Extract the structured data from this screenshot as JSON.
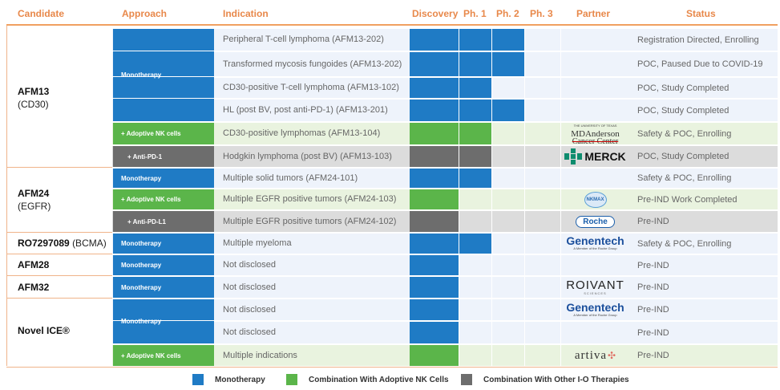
{
  "chart_data": {
    "type": "table",
    "columns": [
      "Candidate",
      "Approach",
      "Indication",
      "Discovery",
      "Ph. 1",
      "Ph. 2",
      "Ph. 3",
      "Partner",
      "Status"
    ],
    "phases": [
      "Discovery",
      "Ph. 1",
      "Ph. 2",
      "Ph. 3"
    ],
    "colors": {
      "monotherapy": "#1f7bc5",
      "adoptive": "#5bb54a",
      "io": "#6d6d6d",
      "header": "#e8884a"
    },
    "candidates": [
      {
        "name": "AFM13",
        "sub": "(CD30)"
      },
      {
        "name": "AFM24",
        "sub": "(EGFR)"
      },
      {
        "name": "RO7297089",
        "sub": "(BCMA)"
      },
      {
        "name": "AFM28",
        "sub": ""
      },
      {
        "name": "AFM32",
        "sub": ""
      },
      {
        "name": "Novel ICE®",
        "sub": ""
      }
    ],
    "approaches": [
      {
        "label": "Monotherapy",
        "color": "blue"
      },
      {
        "label": "+ Adoptive NK cells",
        "color": "green"
      },
      {
        "label": "+ Anti-PD-1",
        "color": "gray"
      },
      {
        "label": "Monotherapy",
        "color": "blue"
      },
      {
        "label": "+ Adoptive NK cells",
        "color": "green"
      },
      {
        "label": "+ Anti-PD-L1",
        "color": "gray"
      },
      {
        "label": "Monotherapy",
        "color": "blue"
      },
      {
        "label": "Monotherapy",
        "color": "blue"
      },
      {
        "label": "Monotherapy",
        "color": "blue"
      },
      {
        "label": "Monotherapy",
        "color": "blue"
      },
      {
        "label": "+ Adoptive NK cells",
        "color": "green"
      }
    ],
    "rows": [
      {
        "indication": "Peripheral T-cell lymphoma (AFM13-202)",
        "phase_reached": 3,
        "color": "blue",
        "status": "Registration Directed, Enrolling"
      },
      {
        "indication": "Transformed mycosis fungoides (AFM13-202)",
        "phase_reached": 3,
        "color": "blue",
        "status": "POC, Paused Due to COVID-19"
      },
      {
        "indication": "CD30-positive T-cell lymphoma (AFM13-102)",
        "phase_reached": 2,
        "color": "blue",
        "status": "POC, Study Completed"
      },
      {
        "indication": "HL (post BV, post anti-PD-1) (AFM13-201)",
        "phase_reached": 3,
        "color": "blue",
        "status": "POC, Study Completed"
      },
      {
        "indication": "CD30-positive lymphomas (AFM13-104)",
        "phase_reached": 2,
        "color": "green",
        "status": "Safety & POC, Enrolling"
      },
      {
        "indication": "Hodgkin lymphoma (post BV) (AFM13-103)",
        "phase_reached": 2,
        "color": "gray",
        "status": "POC, Study Completed"
      },
      {
        "indication": "Multiple solid tumors (AFM24-101)",
        "phase_reached": 2,
        "color": "blue",
        "status": "Safety & POC, Enrolling"
      },
      {
        "indication": "Multiple EGFR positive tumors  (AFM24-103)",
        "phase_reached": 1,
        "color": "green",
        "status": "Pre-IND Work Completed"
      },
      {
        "indication": "Multiple EGFR positive tumors  (AFM24-102)",
        "phase_reached": 1,
        "color": "gray",
        "status": "Pre-IND"
      },
      {
        "indication": "Multiple myeloma",
        "phase_reached": 2,
        "color": "blue",
        "status": "Safety & POC, Enrolling"
      },
      {
        "indication": "Not disclosed",
        "phase_reached": 1,
        "color": "blue",
        "status": "Pre-IND"
      },
      {
        "indication": "Not disclosed",
        "phase_reached": 1,
        "color": "blue",
        "status": "Pre-IND"
      },
      {
        "indication": "Not disclosed",
        "phase_reached": 1,
        "color": "blue",
        "status": "Pre-IND"
      },
      {
        "indication": "Not disclosed",
        "phase_reached": 1,
        "color": "blue",
        "status": "Pre-IND"
      },
      {
        "indication": "Multiple indications",
        "phase_reached": 1,
        "color": "green",
        "status": "Pre-IND"
      }
    ],
    "partners": [
      {
        "name": "MD Anderson Cancer Center",
        "line1": "MDAnderson",
        "line2": "Cancer Center",
        "top": "THE UNIVERSITY OF TEXAS"
      },
      {
        "name": "MERCK",
        "text": "MERCK"
      },
      {
        "name": "NKMAX",
        "text": "NKMAX"
      },
      {
        "name": "Roche",
        "text": "Roche"
      },
      {
        "name": "Genentech",
        "text": "Genentech",
        "tagline": "A Member of the Roche Group"
      },
      {
        "name": "ROIVANT",
        "text": "ROIVANT",
        "tagline": "SCIENCES"
      },
      {
        "name": "Genentech",
        "text": "Genentech",
        "tagline": "A Member of the Roche Group"
      },
      {
        "name": "artiva",
        "text": "artiva"
      }
    ],
    "legend": [
      {
        "label": "Monotherapy",
        "color": "#1f7bc5"
      },
      {
        "label": "Combination With Adoptive NK Cells",
        "color": "#5bb54a"
      },
      {
        "label": "Combination With Other I-O Therapies",
        "color": "#6d6d6d"
      }
    ]
  }
}
